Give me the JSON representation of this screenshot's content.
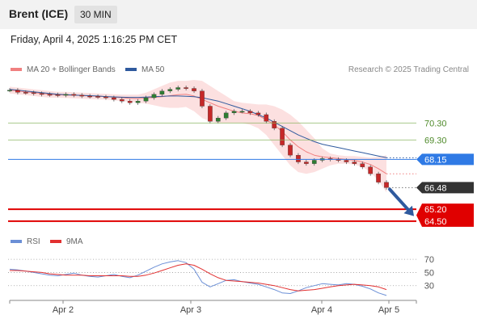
{
  "header": {
    "instrument": "Brent (ICE)",
    "timeframe": "30 MIN",
    "datetime": "Friday, April 4, 2025 1:16:25 PM CET"
  },
  "legend": {
    "ma20_label": "MA 20 + Bollinger Bands",
    "ma20_color": "#f08080",
    "ma50_label": "MA 50",
    "ma50_color": "#2f5a9e",
    "credit": "Research © 2025 Trading Central"
  },
  "rsi_legend": {
    "rsi_label": "RSI",
    "rsi_color": "#6b8fd6",
    "ma_label": "9MA",
    "ma_color": "#e23030"
  },
  "chart_data": {
    "type": "line",
    "x_ticks": [
      "Apr 2",
      "Apr 3",
      "Apr 4",
      "Apr 5"
    ],
    "price": [
      72.25,
      72.12,
      72.1,
      72.05,
      72.0,
      71.98,
      71.95,
      72.0,
      71.95,
      71.9,
      71.88,
      71.85,
      71.8,
      71.7,
      71.6,
      71.5,
      71.6,
      71.8,
      72.0,
      72.2,
      72.3,
      72.4,
      72.35,
      72.2,
      71.3,
      70.4,
      70.6,
      70.9,
      71.0,
      71.0,
      70.9,
      70.8,
      70.4,
      70.0,
      69.0,
      68.4,
      68.0,
      67.9,
      68.1,
      68.2,
      68.15,
      68.1,
      68.0,
      67.9,
      67.7,
      67.3,
      66.8,
      66.48
    ],
    "ma50": [
      72.3,
      72.25,
      72.2,
      72.15,
      72.1,
      72.05,
      72.0,
      71.98,
      71.96,
      71.94,
      71.92,
      71.9,
      71.87,
      71.85,
      71.83,
      71.82,
      71.82,
      71.84,
      71.86,
      71.88,
      71.9,
      71.9,
      71.88,
      71.86,
      71.8,
      71.7,
      71.6,
      71.45,
      71.3,
      71.15,
      71.0,
      70.8,
      70.6,
      70.35,
      70.1,
      69.85,
      69.6,
      69.4,
      69.2,
      69.05,
      68.95,
      68.85,
      68.75,
      68.65,
      68.55,
      68.45,
      68.35,
      68.25
    ],
    "ma20": [
      72.25,
      72.2,
      72.15,
      72.1,
      72.05,
      72.0,
      71.98,
      71.96,
      71.95,
      71.93,
      71.9,
      71.88,
      71.86,
      71.83,
      71.8,
      71.77,
      71.75,
      71.78,
      71.82,
      71.86,
      71.92,
      71.98,
      72.0,
      71.9,
      71.7,
      71.5,
      71.3,
      71.15,
      71.0,
      70.9,
      70.85,
      70.75,
      70.5,
      70.2,
      69.8,
      69.3,
      68.9,
      68.6,
      68.4,
      68.3,
      68.25,
      68.2,
      68.15,
      68.1,
      68.0,
      67.85,
      67.6,
      67.3
    ],
    "bb_upper": [
      72.45,
      72.4,
      72.35,
      72.3,
      72.25,
      72.2,
      72.15,
      72.15,
      72.12,
      72.1,
      72.08,
      72.05,
      72.03,
      72.0,
      71.98,
      71.98,
      71.98,
      72.1,
      72.3,
      72.5,
      72.7,
      72.8,
      72.8,
      72.85,
      72.8,
      72.5,
      72.2,
      71.9,
      71.6,
      71.5,
      71.45,
      71.4,
      71.4,
      71.3,
      71.1,
      70.8,
      70.4,
      69.9,
      69.4,
      68.8,
      68.5,
      68.4,
      68.35,
      68.35,
      68.3,
      68.25,
      68.3,
      68.4
    ],
    "bb_lower": [
      72.05,
      72.0,
      71.95,
      71.9,
      71.85,
      71.8,
      71.8,
      71.78,
      71.77,
      71.75,
      71.72,
      71.7,
      71.68,
      71.65,
      71.6,
      71.55,
      71.5,
      71.45,
      71.35,
      71.25,
      71.2,
      71.2,
      71.25,
      71.0,
      70.6,
      70.4,
      70.3,
      70.3,
      70.3,
      70.3,
      70.2,
      70.0,
      69.6,
      69.0,
      68.4,
      67.8,
      67.4,
      67.3,
      67.4,
      67.6,
      67.8,
      67.9,
      67.9,
      67.85,
      67.7,
      67.4,
      66.9,
      66.2
    ],
    "y_range": [
      64.3,
      72.9
    ],
    "levels": [
      {
        "label": "70.30",
        "value": 70.3,
        "kind": "resistance",
        "color": "#86b35a",
        "text_color": "#4f8a2a"
      },
      {
        "label": "69.30",
        "value": 69.3,
        "kind": "resistance",
        "color": "#86b35a",
        "text_color": "#4f8a2a"
      },
      {
        "label": "68.15",
        "value": 68.15,
        "kind": "pivot",
        "color": "#2f7ae5",
        "text_color": "#ffffff"
      },
      {
        "label": "66.48",
        "value": 66.48,
        "kind": "last",
        "color": "#333333",
        "text_color": "#ffffff"
      },
      {
        "label": "65.20",
        "value": 65.2,
        "kind": "support",
        "color": "#e00000",
        "text_color": "#ffffff"
      },
      {
        "label": "64.50",
        "value": 64.5,
        "kind": "support",
        "color": "#e00000",
        "text_color": "#ffffff"
      }
    ],
    "projection": {
      "from": 66.48,
      "to": 65.2,
      "direction": "down",
      "color": "#2f5a9e"
    },
    "rsi": {
      "levels": [
        70,
        50,
        30
      ],
      "y_range": [
        10,
        80
      ],
      "values": [
        55,
        54,
        52,
        50,
        48,
        46,
        45,
        47,
        49,
        46,
        44,
        43,
        45,
        47,
        44,
        42,
        46,
        52,
        58,
        63,
        66,
        68,
        65,
        55,
        35,
        28,
        33,
        38,
        39,
        36,
        34,
        32,
        28,
        24,
        19,
        18,
        22,
        27,
        30,
        33,
        32,
        31,
        33,
        32,
        29,
        25,
        19,
        15
      ],
      "ma_values": [
        53,
        53,
        52,
        51,
        50,
        48,
        47,
        46,
        46,
        46,
        45,
        45,
        45,
        45,
        45,
        44,
        44,
        46,
        49,
        53,
        57,
        61,
        63,
        61,
        55,
        48,
        42,
        38,
        37,
        36,
        35,
        34,
        32,
        30,
        27,
        24,
        22,
        23,
        24,
        26,
        28,
        30,
        31,
        32,
        31,
        30,
        28,
        24
      ]
    }
  }
}
